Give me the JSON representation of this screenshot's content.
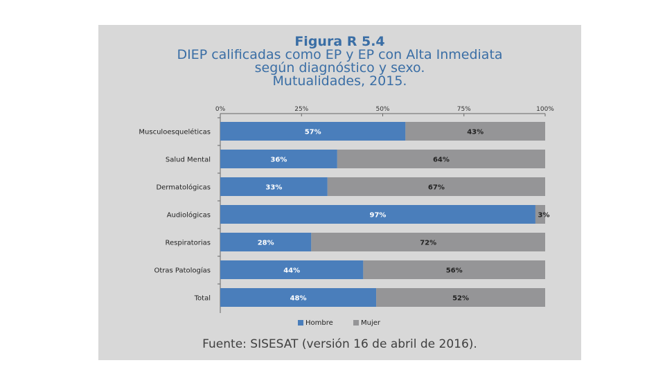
{
  "chart_data": {
    "type": "bar",
    "orientation": "horizontal",
    "stacked": true,
    "figure_label": "Figura R 5.4",
    "title_lines": [
      "DIEP calificadas como EP y EP con Alta Inmediata",
      "según diagnóstico y sexo.",
      "Mutualidades, 2015."
    ],
    "categories": [
      "Musculoesqueléticas",
      "Salud Mental",
      "Dermatológicas",
      "Audiológicas",
      "Respiratorias",
      "Otras Patologías",
      "Total"
    ],
    "series": [
      {
        "name": "Hombre",
        "color": "#4a7ebb",
        "values": [
          57,
          36,
          33,
          97,
          28,
          44,
          48
        ],
        "labels": [
          "57%",
          "36%",
          "33%",
          "97%",
          "28%",
          "44%",
          "48%"
        ]
      },
      {
        "name": "Mujer",
        "color": "#959597",
        "values": [
          43,
          64,
          67,
          3,
          72,
          56,
          52
        ],
        "labels": [
          "43%",
          "64%",
          "67%",
          "3%",
          "72%",
          "56%",
          "52%"
        ]
      }
    ],
    "x_ticks": [
      "0%",
      "25%",
      "50%",
      "75%",
      "100%"
    ],
    "xlim": [
      0,
      100
    ],
    "legend_position": "bottom"
  },
  "source": "Fuente: SISESAT (versión 16 de abril de 2016)."
}
